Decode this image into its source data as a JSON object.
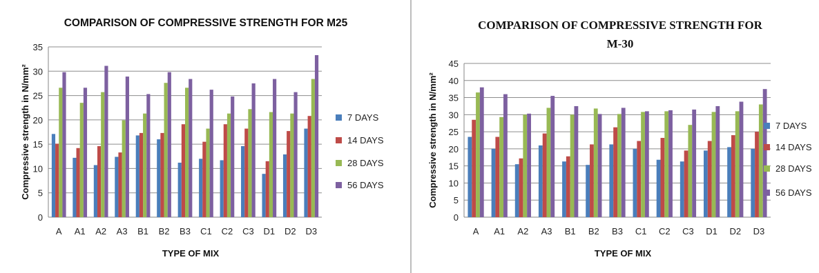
{
  "colors": {
    "series": [
      "#4a7ebb",
      "#be4b48",
      "#98b954",
      "#7d60a0"
    ],
    "grid": "#8c8c8c",
    "axis": "#868686"
  },
  "chart_data": [
    {
      "type": "bar",
      "title": "COMPARISON OF COMPRESSIVE STRENGTH  FOR  M25",
      "xlabel": "TYPE OF MIX",
      "ylabel": "Compressive strength in N/mm²",
      "ylim": [
        0,
        35
      ],
      "yticks": [
        0,
        5,
        10,
        15,
        20,
        25,
        30,
        35
      ],
      "grid": true,
      "legend_position": "right",
      "categories": [
        "A",
        "A1",
        "A2",
        "A3",
        "B1",
        "B2",
        "B3",
        "C1",
        "C2",
        "C3",
        "D1",
        "D2",
        "D3"
      ],
      "series": [
        {
          "name": "7 DAYS",
          "values": [
            17.1,
            12.2,
            10.7,
            12.4,
            16.8,
            16.0,
            11.2,
            12.0,
            11.7,
            14.6,
            8.9,
            12.9,
            18.2
          ]
        },
        {
          "name": "14 DAYS",
          "values": [
            15.1,
            14.2,
            14.6,
            13.3,
            17.3,
            17.3,
            19.1,
            15.5,
            19.1,
            18.2,
            11.5,
            17.7,
            20.8
          ]
        },
        {
          "name": "28 DAYS",
          "values": [
            26.6,
            23.5,
            25.7,
            19.9,
            21.3,
            27.6,
            26.6,
            18.2,
            21.3,
            22.2,
            21.6,
            21.3,
            28.4
          ]
        },
        {
          "name": "56 DAYS",
          "values": [
            29.8,
            26.6,
            31.1,
            28.9,
            25.3,
            29.8,
            28.4,
            26.2,
            24.8,
            27.5,
            28.4,
            25.7,
            33.3
          ]
        }
      ]
    },
    {
      "type": "bar",
      "title_lines": [
        "COMPARISON OF COMPRESSIVE STRENGTH FOR",
        "M-30"
      ],
      "xlabel": "TYPE OF MIX",
      "ylabel": "Compressive strength in N/mm²",
      "ylim": [
        0,
        45
      ],
      "yticks": [
        0,
        5,
        10,
        15,
        20,
        25,
        30,
        35,
        40,
        45
      ],
      "grid": true,
      "legend_position": "right",
      "categories": [
        "A",
        "A1",
        "A2",
        "A3",
        "B1",
        "B2",
        "B3",
        "C1",
        "C2",
        "C3",
        "D1",
        "D2",
        "D3"
      ],
      "series": [
        {
          "name": "7 DAYS",
          "values": [
            23.5,
            20.0,
            15.5,
            21.0,
            16.3,
            15.3,
            21.3,
            20.0,
            16.8,
            16.3,
            19.5,
            20.5,
            20.0
          ]
        },
        {
          "name": "14 DAYS",
          "values": [
            28.5,
            23.5,
            17.2,
            24.5,
            17.8,
            21.3,
            26.3,
            22.3,
            23.2,
            19.5,
            22.3,
            24.0,
            25.0
          ]
        },
        {
          "name": "28 DAYS",
          "values": [
            36.5,
            29.3,
            30.0,
            32.0,
            30.0,
            31.8,
            30.2,
            30.8,
            31.0,
            27.0,
            30.8,
            31.0,
            33.0
          ]
        },
        {
          "name": "56 DAYS",
          "values": [
            38.0,
            36.0,
            30.3,
            35.5,
            32.5,
            30.2,
            32.0,
            31.0,
            31.3,
            31.5,
            32.5,
            33.8,
            37.5
          ]
        }
      ]
    }
  ]
}
